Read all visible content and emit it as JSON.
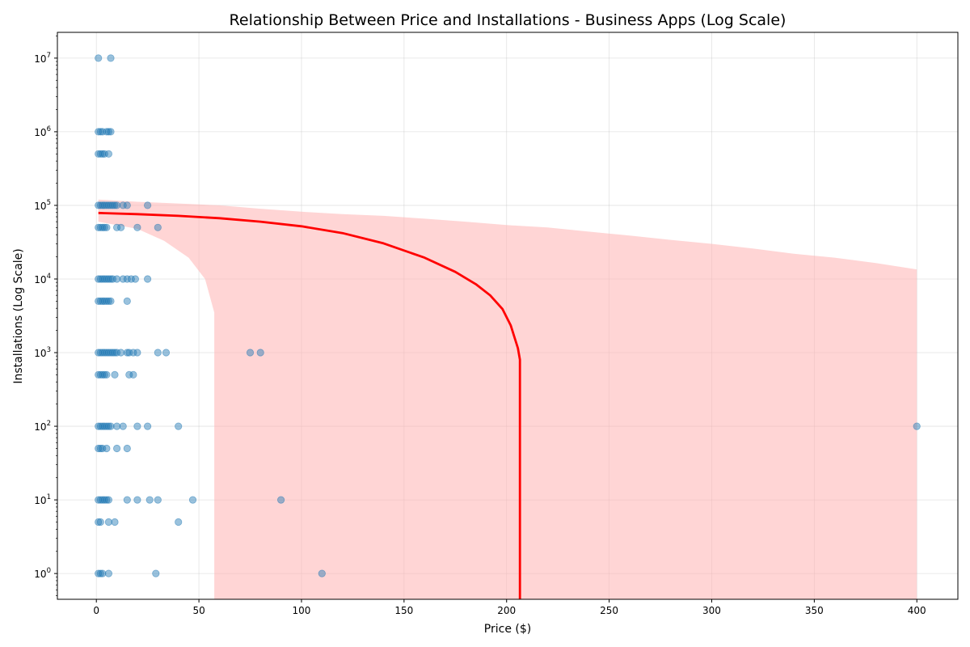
{
  "chart_data": {
    "type": "scatter",
    "title": "Relationship Between Price and Installations - Business Apps (Log Scale)",
    "xlabel": "Price ($)",
    "ylabel": "Installations (Log Scale)",
    "xlim": [
      -19,
      420
    ],
    "ylim_log10": [
      -0.35,
      7.35
    ],
    "yscale": "log",
    "grid": true,
    "x_ticks": [
      0,
      50,
      100,
      150,
      200,
      250,
      300,
      350,
      400
    ],
    "y_ticks": [
      {
        "exp": 0,
        "base": "10",
        "power": "0"
      },
      {
        "exp": 1,
        "base": "10",
        "power": "1"
      },
      {
        "exp": 2,
        "base": "10",
        "power": "2"
      },
      {
        "exp": 3,
        "base": "10",
        "power": "3"
      },
      {
        "exp": 4,
        "base": "10",
        "power": "4"
      },
      {
        "exp": 5,
        "base": "10",
        "power": "5"
      },
      {
        "exp": 6,
        "base": "10",
        "power": "6"
      },
      {
        "exp": 7,
        "base": "10",
        "power": "7"
      }
    ],
    "scatter_color": "#1f77b4",
    "fit_color": "#ff0000",
    "band_color": "#ffb3b3",
    "points": [
      [
        0.99,
        10000000
      ],
      [
        6.99,
        10000000
      ],
      [
        0.99,
        1000000
      ],
      [
        1.99,
        1000000
      ],
      [
        2.99,
        1000000
      ],
      [
        4.99,
        1000000
      ],
      [
        5.99,
        1000000
      ],
      [
        6.99,
        1000000
      ],
      [
        0.99,
        500000
      ],
      [
        1.99,
        500000
      ],
      [
        2.99,
        500000
      ],
      [
        3.99,
        500000
      ],
      [
        5.99,
        500000
      ],
      [
        0.99,
        100000
      ],
      [
        1.99,
        100000
      ],
      [
        2.99,
        100000
      ],
      [
        3.99,
        100000
      ],
      [
        4.99,
        100000
      ],
      [
        5.99,
        100000
      ],
      [
        6.99,
        100000
      ],
      [
        7.99,
        100000
      ],
      [
        8.99,
        100000
      ],
      [
        9.99,
        100000
      ],
      [
        12.99,
        100000
      ],
      [
        14.99,
        100000
      ],
      [
        24.99,
        100000
      ],
      [
        0.99,
        50000
      ],
      [
        1.99,
        50000
      ],
      [
        2.99,
        50000
      ],
      [
        3.99,
        50000
      ],
      [
        4.99,
        50000
      ],
      [
        9.99,
        50000
      ],
      [
        11.99,
        50000
      ],
      [
        19.99,
        50000
      ],
      [
        29.99,
        50000
      ],
      [
        0.99,
        10000
      ],
      [
        1.99,
        10000
      ],
      [
        2.99,
        10000
      ],
      [
        3.99,
        10000
      ],
      [
        4.99,
        10000
      ],
      [
        5.99,
        10000
      ],
      [
        6.99,
        10000
      ],
      [
        7.99,
        10000
      ],
      [
        9.99,
        10000
      ],
      [
        12.99,
        10000
      ],
      [
        14.99,
        10000
      ],
      [
        16.99,
        10000
      ],
      [
        18.99,
        10000
      ],
      [
        24.99,
        10000
      ],
      [
        0.99,
        5000
      ],
      [
        1.99,
        5000
      ],
      [
        2.99,
        5000
      ],
      [
        3.99,
        5000
      ],
      [
        4.99,
        5000
      ],
      [
        5.99,
        5000
      ],
      [
        6.99,
        5000
      ],
      [
        14.99,
        5000
      ],
      [
        0.99,
        1000
      ],
      [
        1.99,
        1000
      ],
      [
        2.99,
        1000
      ],
      [
        3.99,
        1000
      ],
      [
        4.99,
        1000
      ],
      [
        5.99,
        1000
      ],
      [
        6.99,
        1000
      ],
      [
        7.99,
        1000
      ],
      [
        8.99,
        1000
      ],
      [
        9.99,
        1000
      ],
      [
        11.99,
        1000
      ],
      [
        14.99,
        1000
      ],
      [
        15.99,
        1000
      ],
      [
        17.99,
        1000
      ],
      [
        19.99,
        1000
      ],
      [
        29.99,
        1000
      ],
      [
        33.99,
        1000
      ],
      [
        74.99,
        1000
      ],
      [
        79.99,
        1000
      ],
      [
        0.99,
        500
      ],
      [
        1.99,
        500
      ],
      [
        2.99,
        500
      ],
      [
        3.99,
        500
      ],
      [
        4.99,
        500
      ],
      [
        8.99,
        500
      ],
      [
        15.99,
        500
      ],
      [
        17.99,
        500
      ],
      [
        0.99,
        100
      ],
      [
        1.99,
        100
      ],
      [
        2.99,
        100
      ],
      [
        3.99,
        100
      ],
      [
        4.99,
        100
      ],
      [
        5.99,
        100
      ],
      [
        6.99,
        100
      ],
      [
        9.99,
        100
      ],
      [
        12.99,
        100
      ],
      [
        19.99,
        100
      ],
      [
        24.99,
        100
      ],
      [
        39.99,
        100
      ],
      [
        399.99,
        100
      ],
      [
        0.99,
        50
      ],
      [
        1.99,
        50
      ],
      [
        2.99,
        50
      ],
      [
        4.99,
        50
      ],
      [
        9.99,
        50
      ],
      [
        14.99,
        50
      ],
      [
        0.99,
        10
      ],
      [
        1.99,
        10
      ],
      [
        2.99,
        10
      ],
      [
        3.99,
        10
      ],
      [
        4.99,
        10
      ],
      [
        5.99,
        10
      ],
      [
        14.99,
        10
      ],
      [
        19.99,
        10
      ],
      [
        25.99,
        10
      ],
      [
        29.99,
        10
      ],
      [
        46.99,
        10
      ],
      [
        89.99,
        10
      ],
      [
        0.99,
        5
      ],
      [
        1.99,
        5
      ],
      [
        5.99,
        5
      ],
      [
        8.99,
        5
      ],
      [
        39.99,
        5
      ],
      [
        0.99,
        1
      ],
      [
        1.99,
        1
      ],
      [
        2.99,
        1
      ],
      [
        5.99,
        1
      ],
      [
        28.99,
        1
      ],
      [
        109.99,
        1
      ]
    ],
    "fit_line": [
      [
        0.99,
        79000
      ],
      [
        20,
        76000
      ],
      [
        40,
        72000
      ],
      [
        60,
        67000
      ],
      [
        80,
        60000
      ],
      [
        100,
        52000
      ],
      [
        120,
        42000
      ],
      [
        140,
        30500
      ],
      [
        160,
        19500
      ],
      [
        175,
        12500
      ],
      [
        185,
        8500
      ],
      [
        192,
        6000
      ],
      [
        198,
        3900
      ],
      [
        202,
        2350
      ],
      [
        205.5,
        1150
      ],
      [
        206.5,
        800
      ],
      [
        206.5,
        0.001
      ]
    ],
    "ci_upper": [
      [
        0.99,
        120000
      ],
      [
        20,
        112000
      ],
      [
        40,
        106000
      ],
      [
        60,
        100000
      ],
      [
        80,
        90000
      ],
      [
        100,
        82000
      ],
      [
        120,
        76000
      ],
      [
        140,
        72000
      ],
      [
        160,
        66000
      ],
      [
        180,
        60000
      ],
      [
        200,
        54000
      ],
      [
        220,
        50000
      ],
      [
        240,
        44000
      ],
      [
        260,
        39000
      ],
      [
        280,
        34000
      ],
      [
        300,
        30000
      ],
      [
        320,
        26000
      ],
      [
        340,
        22000
      ],
      [
        360,
        19500
      ],
      [
        380,
        16500
      ],
      [
        399.99,
        13500
      ]
    ],
    "ci_lower": [
      [
        0.99,
        60000
      ],
      [
        20,
        48000
      ],
      [
        33,
        33000
      ],
      [
        45,
        19500
      ],
      [
        53,
        10000
      ],
      [
        57.5,
        3500
      ],
      [
        57.5,
        0.001
      ]
    ]
  }
}
